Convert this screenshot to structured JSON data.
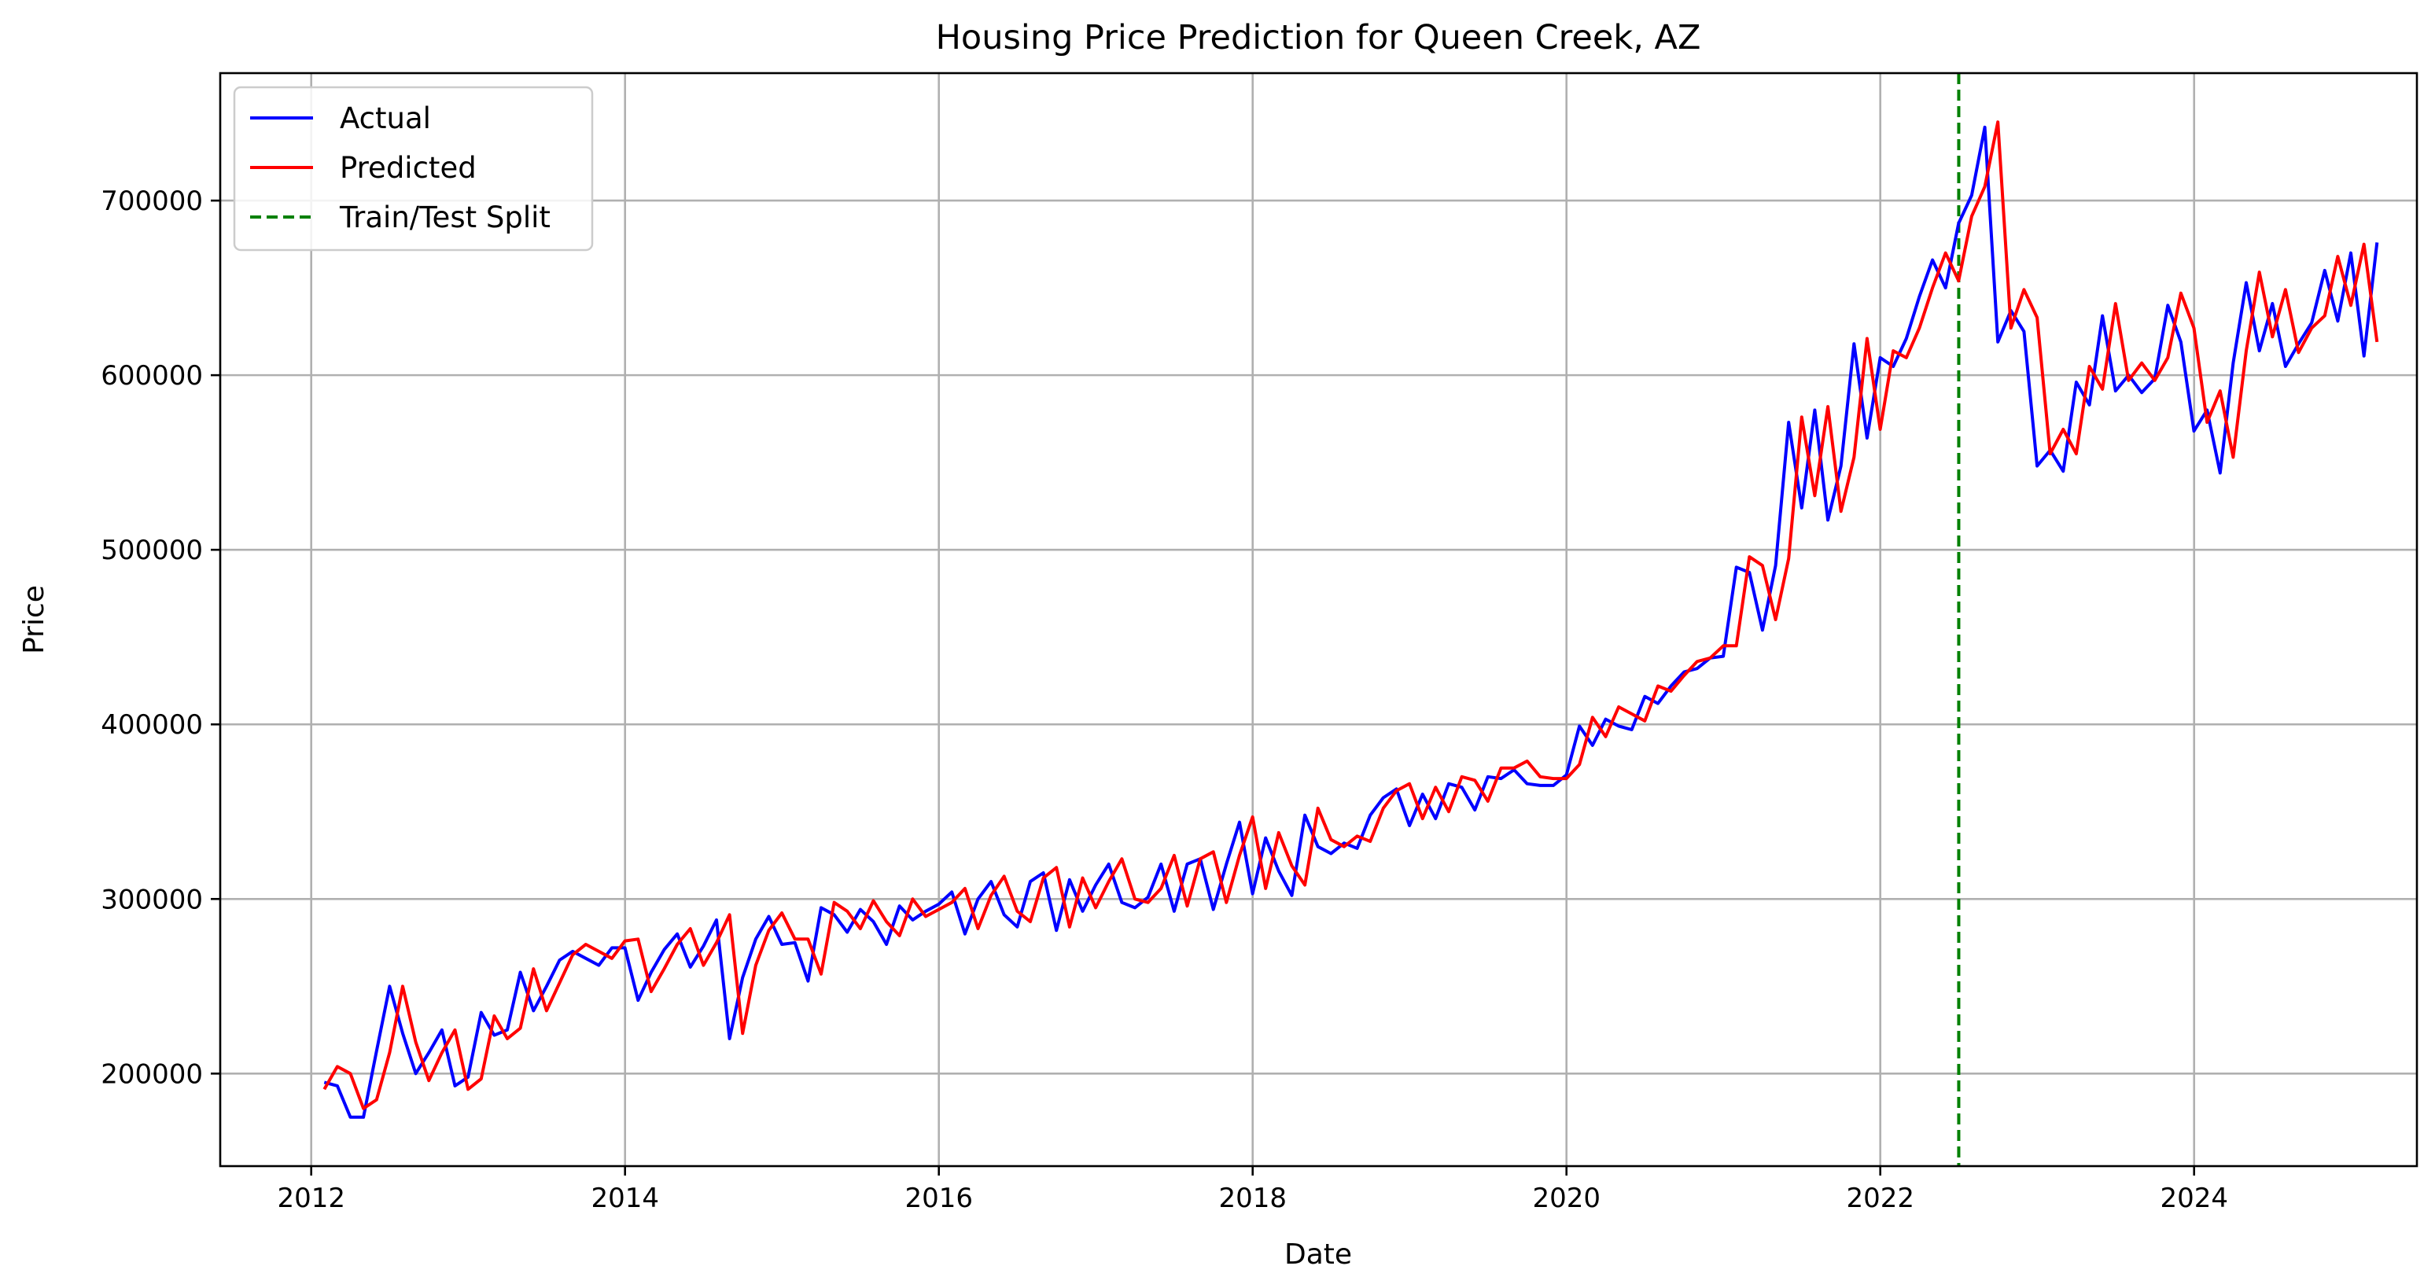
{
  "chart_data": {
    "type": "line",
    "title": "Housing Price Prediction for Queen Creek, AZ",
    "xlabel": "Date",
    "ylabel": "Price",
    "xlim": [
      2011.42,
      2025.42
    ],
    "ylim": [
      147000,
      773000
    ],
    "xticks": [
      2012,
      2014,
      2016,
      2018,
      2020,
      2022,
      2024
    ],
    "xtick_labels": [
      "2012",
      "2014",
      "2016",
      "2018",
      "2020",
      "2022",
      "2024"
    ],
    "yticks": [
      200000,
      300000,
      400000,
      500000,
      600000,
      700000
    ],
    "ytick_labels": [
      "200000",
      "300000",
      "400000",
      "500000",
      "600000",
      "700000"
    ],
    "grid": true,
    "legend_position": "top-left",
    "split": {
      "name": "Train/Test Split",
      "x": 2022.5,
      "color": "#008000",
      "style": "dashed"
    },
    "x_start": 2012.083,
    "x_step": 0.08333,
    "series": [
      {
        "name": "Actual",
        "color": "#0000ff",
        "values": [
          195000,
          193000,
          175000,
          175000,
          213000,
          250000,
          223000,
          200000,
          212000,
          225000,
          193000,
          198000,
          235000,
          222000,
          225000,
          258000,
          236000,
          250000,
          265000,
          270000,
          266000,
          262000,
          272000,
          272000,
          242000,
          258000,
          271000,
          280000,
          261000,
          273000,
          288000,
          220000,
          255000,
          277000,
          290000,
          274000,
          275000,
          253000,
          295000,
          291000,
          281000,
          294000,
          287000,
          274000,
          296000,
          288000,
          293000,
          297000,
          304000,
          280000,
          300000,
          310000,
          291000,
          284000,
          310000,
          315000,
          282000,
          311000,
          293000,
          308000,
          320000,
          298000,
          295000,
          301000,
          320000,
          293000,
          320000,
          323000,
          294000,
          320000,
          344000,
          303000,
          335000,
          316000,
          302000,
          348000,
          330000,
          326000,
          332000,
          329000,
          348000,
          358000,
          363000,
          342000,
          360000,
          346000,
          366000,
          364000,
          351000,
          370000,
          369000,
          374000,
          366000,
          365000,
          365000,
          371000,
          399000,
          388000,
          403000,
          399000,
          397000,
          416000,
          412000,
          422000,
          430000,
          432000,
          438000,
          439000,
          490000,
          487000,
          454000,
          491000,
          573000,
          524000,
          580000,
          517000,
          548000,
          618000,
          564000,
          610000,
          605000,
          621000,
          645000,
          666000,
          650000,
          687000,
          703000,
          742000,
          619000,
          637000,
          625000,
          548000,
          557000,
          545000,
          596000,
          583000,
          634000,
          591000,
          600000,
          590000,
          598000,
          640000,
          619000,
          568000,
          580000,
          544000,
          607000,
          653000,
          614000,
          641000,
          605000,
          618000,
          630000,
          660000,
          631000,
          670000,
          611000,
          676000
        ]
      },
      {
        "name": "Predicted",
        "color": "#ff0000",
        "values": [
          191000,
          204000,
          200000,
          180000,
          185000,
          212000,
          250000,
          218000,
          196000,
          212000,
          225000,
          191000,
          197000,
          233000,
          220000,
          226000,
          260000,
          236000,
          252000,
          268000,
          274000,
          270000,
          266000,
          276000,
          277000,
          247000,
          260000,
          274000,
          283000,
          262000,
          275000,
          291000,
          223000,
          262000,
          282000,
          292000,
          277000,
          277000,
          257000,
          298000,
          293000,
          283000,
          299000,
          287000,
          279000,
          300000,
          290000,
          294000,
          298000,
          306000,
          283000,
          302000,
          313000,
          293000,
          287000,
          312000,
          318000,
          284000,
          312000,
          295000,
          310000,
          323000,
          300000,
          298000,
          306000,
          325000,
          296000,
          323000,
          327000,
          298000,
          325000,
          347000,
          306000,
          338000,
          319000,
          308000,
          352000,
          334000,
          330000,
          336000,
          333000,
          352000,
          362000,
          366000,
          346000,
          364000,
          350000,
          370000,
          368000,
          356000,
          375000,
          375000,
          379000,
          370000,
          369000,
          369000,
          377000,
          404000,
          393000,
          410000,
          406000,
          402000,
          422000,
          419000,
          428000,
          436000,
          438000,
          445000,
          445000,
          496000,
          491000,
          460000,
          495000,
          576000,
          531000,
          582000,
          522000,
          553000,
          621000,
          569000,
          614000,
          610000,
          627000,
          650000,
          670000,
          654000,
          691000,
          708000,
          745000,
          627000,
          649000,
          633000,
          555000,
          569000,
          555000,
          605000,
          592000,
          641000,
          597000,
          607000,
          597000,
          610000,
          647000,
          627000,
          573000,
          591000,
          553000,
          614000,
          659000,
          622000,
          649000,
          613000,
          627000,
          634000,
          668000,
          640000,
          675000,
          619000
        ]
      }
    ]
  }
}
